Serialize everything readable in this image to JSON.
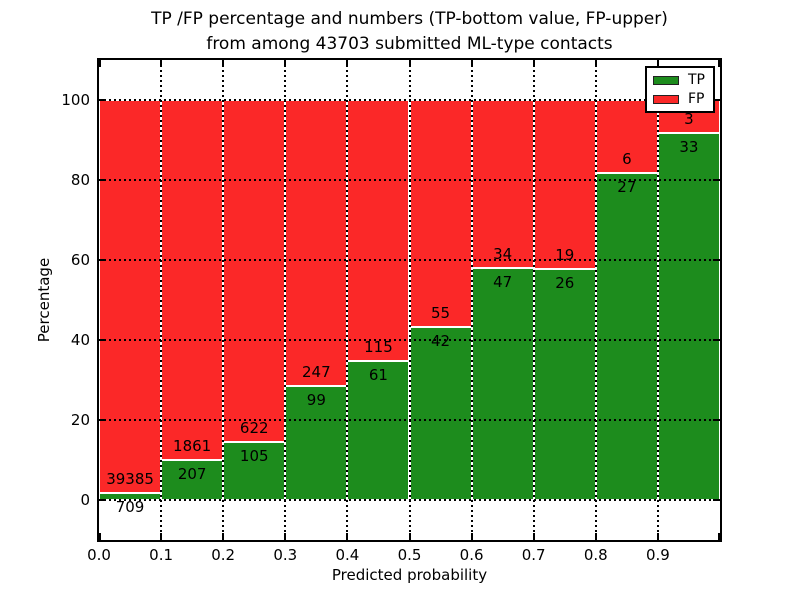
{
  "title": {
    "line1": "TP /FP percentage and numbers (TP-bottom value, FP-upper)",
    "line2": "from among 43703 submitted ML-type contacts"
  },
  "chart_data": {
    "type": "bar",
    "subtype": "stacked-percentage",
    "title": "TP /FP percentage and numbers (TP-bottom value, FP-upper) from among 43703 submitted ML-type contacts",
    "xlabel": "Predicted probability",
    "ylabel": "Percentage",
    "xlim": [
      0.0,
      1.0
    ],
    "ylim": [
      -10,
      110
    ],
    "x_tick_labels": [
      "0.0",
      "0.1",
      "0.2",
      "0.3",
      "0.4",
      "0.5",
      "0.6",
      "0.7",
      "0.8",
      "0.9"
    ],
    "y_ticks": [
      0,
      20,
      40,
      60,
      80,
      100
    ],
    "bins": [
      "0.0-0.1",
      "0.1-0.2",
      "0.2-0.3",
      "0.3-0.4",
      "0.4-0.5",
      "0.5-0.6",
      "0.6-0.7",
      "0.7-0.8",
      "0.8-0.9",
      "0.9-1.0"
    ],
    "series": [
      {
        "name": "TP",
        "color": "#1d8c1d",
        "counts": [
          709,
          207,
          105,
          99,
          61,
          42,
          47,
          26,
          27,
          33
        ]
      },
      {
        "name": "FP",
        "color": "#fb2828",
        "counts": [
          39385,
          1861,
          622,
          247,
          115,
          55,
          34,
          19,
          6,
          3
        ]
      }
    ],
    "tp_percent": [
      1.77,
      10.01,
      14.44,
      28.61,
      34.66,
      43.3,
      58.02,
      57.78,
      81.82,
      91.67
    ],
    "total_contacts": 43703,
    "grid": "dotted",
    "legend": {
      "position": "upper right",
      "entries": [
        "TP",
        "FP"
      ]
    }
  },
  "colors": {
    "tp_green": "#1d8c1d",
    "fp_red": "#fb2828",
    "grid": "#000000",
    "background": "#ffffff"
  }
}
